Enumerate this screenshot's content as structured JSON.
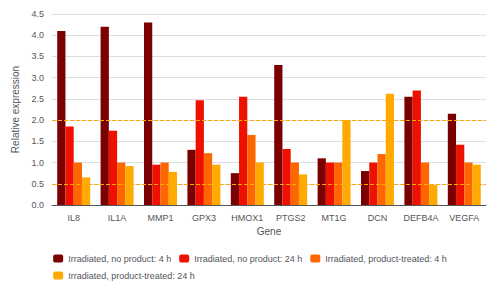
{
  "chart_data": {
    "type": "bar",
    "categories": [
      "IL8",
      "IL1A",
      "MMP1",
      "GPX3",
      "HMOX1",
      "PTGS2",
      "MT1G",
      "DCN",
      "DEFB4A",
      "VEGFA"
    ],
    "series": [
      {
        "name": "Irradiated, no product: 4 h",
        "color": "#7B0000",
        "values": [
          4.1,
          4.2,
          4.3,
          1.3,
          0.75,
          3.3,
          1.1,
          0.8,
          2.55,
          2.15
        ]
      },
      {
        "name": "Irradiated, no product: 24 h",
        "color": "#EE1100",
        "values": [
          1.85,
          1.75,
          0.95,
          2.47,
          2.55,
          1.32,
          1.0,
          1.0,
          2.7,
          1.42
        ]
      },
      {
        "name": "Irradiated, product-treated: 4 h",
        "color": "#FF6600",
        "values": [
          1.0,
          1.0,
          1.0,
          1.22,
          1.65,
          1.0,
          1.0,
          1.2,
          1.0,
          1.0
        ]
      },
      {
        "name": "Irradiated, product-treated: 24 h",
        "color": "#FFAA00",
        "values": [
          0.65,
          0.92,
          0.78,
          0.95,
          1.0,
          0.72,
          2.0,
          2.62,
          0.47,
          0.95
        ]
      }
    ],
    "xlabel": "Gene",
    "ylabel": "Relative expression",
    "ylim": [
      0,
      4.5
    ],
    "yticks": [
      {
        "value": 0,
        "label": "0.0"
      },
      {
        "value": 0.5,
        "label": "0.5"
      },
      {
        "value": 1,
        "label": "1.0"
      },
      {
        "value": 1.5,
        "label": "1.5"
      },
      {
        "value": 2,
        "label": "2.0"
      },
      {
        "value": 2.5,
        "label": "2.5"
      },
      {
        "value": 3,
        "label": "3.0"
      },
      {
        "value": 3.5,
        "label": "3.5"
      },
      {
        "value": 4,
        "label": "4.0"
      },
      {
        "value": 4.5,
        "label": "4.5"
      }
    ],
    "hlines": [
      {
        "value": 2.0,
        "color": "#FFAA00",
        "line_style": "dashed"
      },
      {
        "value": 0.5,
        "color": "#FFAA00",
        "line_style": "dashed"
      }
    ],
    "grid": true,
    "legend": "bottom"
  }
}
